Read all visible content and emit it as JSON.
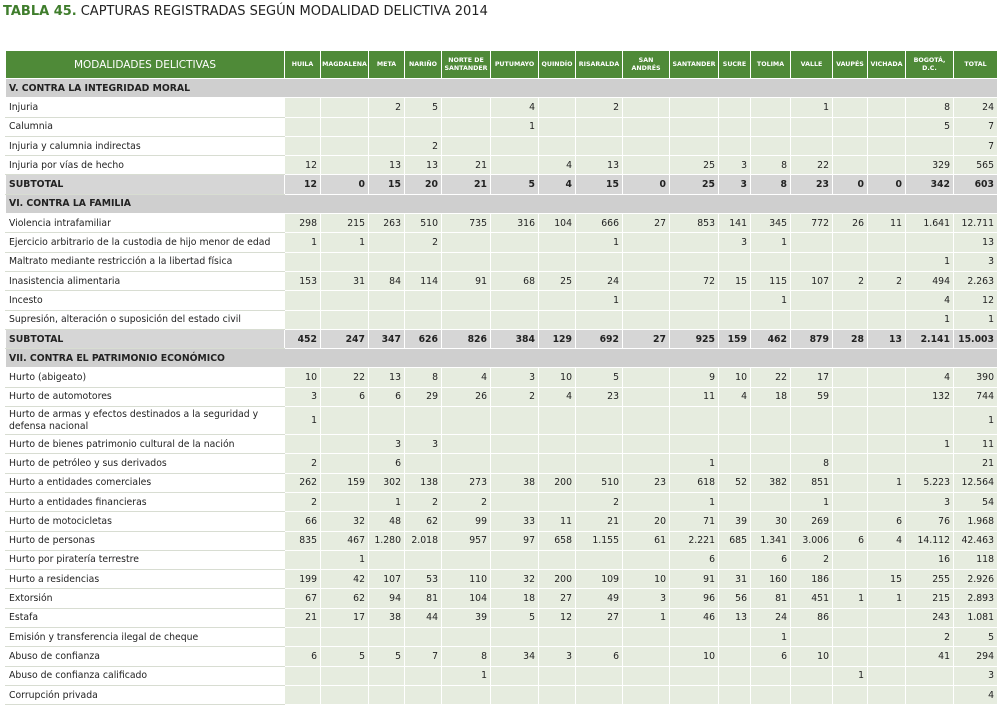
{
  "title": {
    "number": "TABLA 45.",
    "text": "CAPTURAS REGISTRADAS SEGÚN MODALIDAD DELICTIVA 2014"
  },
  "table": {
    "columns": [
      "MODALIDADES DELICTIVAS",
      "HUILA",
      "MAGDALENA",
      "META",
      "NARIÑO",
      "NORTE DE SANTANDER",
      "PUTUMAYO",
      "QUINDÍO",
      "RISARALDA",
      "SAN ANDRÉS",
      "SANTANDER",
      "SUCRE",
      "TOLIMA",
      "VALLE",
      "VAUPÉS",
      "VICHADA",
      "BOGOTÁ, D.C.",
      "TOTAL"
    ],
    "sections": [
      {
        "title": "V. CONTRA LA INTEGRIDAD MORAL",
        "rows": [
          {
            "label": "Injuria",
            "cells": [
              null,
              null,
              "2",
              "5",
              null,
              "4",
              null,
              "2",
              null,
              null,
              null,
              null,
              "1",
              null,
              null,
              "8",
              "24"
            ]
          },
          {
            "label": "Calumnia",
            "cells": [
              null,
              null,
              null,
              null,
              null,
              "1",
              null,
              null,
              null,
              null,
              null,
              null,
              null,
              null,
              null,
              "5",
              "7"
            ]
          },
          {
            "label": "Injuria y calumnia indirectas",
            "cells": [
              null,
              null,
              null,
              "2",
              null,
              null,
              null,
              null,
              null,
              null,
              null,
              null,
              null,
              null,
              null,
              null,
              "7"
            ]
          },
          {
            "label": "Injuria por vías de hecho",
            "cells": [
              "12",
              null,
              "13",
              "13",
              "21",
              null,
              "4",
              "13",
              null,
              "25",
              "3",
              "8",
              "22",
              null,
              null,
              "329",
              "565"
            ]
          }
        ],
        "subtotal": {
          "label": "SUBTOTAL",
          "cells": [
            "12",
            "0",
            "15",
            "20",
            "21",
            "5",
            "4",
            "15",
            "0",
            "25",
            "3",
            "8",
            "23",
            "0",
            "0",
            "342",
            "603"
          ]
        }
      },
      {
        "title": "VI. CONTRA LA FAMILIA",
        "rows": [
          {
            "label": "Violencia intrafamiliar",
            "cells": [
              "298",
              "215",
              "263",
              "510",
              "735",
              "316",
              "104",
              "666",
              "27",
              "853",
              "141",
              "345",
              "772",
              "26",
              "11",
              "1.641",
              "12.711"
            ]
          },
          {
            "label": "Ejercicio arbitrario de la custodia de hijo menor de edad",
            "cells": [
              "1",
              "1",
              null,
              "2",
              null,
              null,
              null,
              "1",
              null,
              null,
              "3",
              "1",
              null,
              null,
              null,
              null,
              "13"
            ]
          },
          {
            "label": "Maltrato mediante restricción a la libertad física",
            "cells": [
              null,
              null,
              null,
              null,
              null,
              null,
              null,
              null,
              null,
              null,
              null,
              null,
              null,
              null,
              null,
              "1",
              "3"
            ]
          },
          {
            "label": "Inasistencia alimentaria",
            "cells": [
              "153",
              "31",
              "84",
              "114",
              "91",
              "68",
              "25",
              "24",
              null,
              "72",
              "15",
              "115",
              "107",
              "2",
              "2",
              "494",
              "2.263"
            ]
          },
          {
            "label": "Incesto",
            "cells": [
              null,
              null,
              null,
              null,
              null,
              null,
              null,
              "1",
              null,
              null,
              null,
              "1",
              null,
              null,
              null,
              "4",
              "12"
            ]
          },
          {
            "label": "Supresión, alteración o suposición del estado civil",
            "cells": [
              null,
              null,
              null,
              null,
              null,
              null,
              null,
              null,
              null,
              null,
              null,
              null,
              null,
              null,
              null,
              "1",
              "1"
            ]
          }
        ],
        "subtotal": {
          "label": "SUBTOTAL",
          "cells": [
            "452",
            "247",
            "347",
            "626",
            "826",
            "384",
            "129",
            "692",
            "27",
            "925",
            "159",
            "462",
            "879",
            "28",
            "13",
            "2.141",
            "15.003"
          ]
        }
      },
      {
        "title": "VII. CONTRA EL PATRIMONIO ECONÓMICO",
        "rows": [
          {
            "label": "Hurto (abigeato)",
            "cells": [
              "10",
              "22",
              "13",
              "8",
              "4",
              "3",
              "10",
              "5",
              null,
              "9",
              "10",
              "22",
              "17",
              null,
              null,
              "4",
              "390"
            ]
          },
          {
            "label": "Hurto de automotores",
            "cells": [
              "3",
              "6",
              "6",
              "29",
              "26",
              "2",
              "4",
              "23",
              null,
              "11",
              "4",
              "18",
              "59",
              null,
              null,
              "132",
              "744"
            ]
          },
          {
            "label": "Hurto de armas y efectos destinados a la seguridad y defensa nacional",
            "cells": [
              "1",
              null,
              null,
              null,
              null,
              null,
              null,
              null,
              null,
              null,
              null,
              null,
              null,
              null,
              null,
              null,
              "1"
            ]
          },
          {
            "label": "Hurto de bienes patrimonio cultural de la nación",
            "cells": [
              null,
              null,
              "3",
              "3",
              null,
              null,
              null,
              null,
              null,
              null,
              null,
              null,
              null,
              null,
              null,
              "1",
              "11"
            ]
          },
          {
            "label": "Hurto de petróleo y sus derivados",
            "cells": [
              "2",
              null,
              "6",
              null,
              null,
              null,
              null,
              null,
              null,
              "1",
              null,
              null,
              "8",
              null,
              null,
              null,
              "21"
            ]
          },
          {
            "label": "Hurto a entidades comerciales",
            "cells": [
              "262",
              "159",
              "302",
              "138",
              "273",
              "38",
              "200",
              "510",
              "23",
              "618",
              "52",
              "382",
              "851",
              null,
              "1",
              "5.223",
              "12.564"
            ]
          },
          {
            "label": "Hurto a entidades financieras",
            "cells": [
              "2",
              null,
              "1",
              "2",
              "2",
              null,
              null,
              "2",
              null,
              "1",
              null,
              null,
              "1",
              null,
              null,
              "3",
              "54"
            ]
          },
          {
            "label": "Hurto de motocicletas",
            "cells": [
              "66",
              "32",
              "48",
              "62",
              "99",
              "33",
              "11",
              "21",
              "20",
              "71",
              "39",
              "30",
              "269",
              null,
              "6",
              "76",
              "1.968"
            ]
          },
          {
            "label": "Hurto de personas",
            "cells": [
              "835",
              "467",
              "1.280",
              "2.018",
              "957",
              "97",
              "658",
              "1.155",
              "61",
              "2.221",
              "685",
              "1.341",
              "3.006",
              "6",
              "4",
              "14.112",
              "42.463"
            ]
          },
          {
            "label": "Hurto por piratería terrestre",
            "cells": [
              null,
              "1",
              null,
              null,
              null,
              null,
              null,
              null,
              null,
              "6",
              null,
              "6",
              "2",
              null,
              null,
              "16",
              "118"
            ]
          },
          {
            "label": "Hurto a residencias",
            "cells": [
              "199",
              "42",
              "107",
              "53",
              "110",
              "32",
              "200",
              "109",
              "10",
              "91",
              "31",
              "160",
              "186",
              null,
              "15",
              "255",
              "2.926"
            ]
          },
          {
            "label": "Extorsión",
            "cells": [
              "67",
              "62",
              "94",
              "81",
              "104",
              "18",
              "27",
              "49",
              "3",
              "96",
              "56",
              "81",
              "451",
              "1",
              "1",
              "215",
              "2.893"
            ]
          },
          {
            "label": "Estafa",
            "cells": [
              "21",
              "17",
              "38",
              "44",
              "39",
              "5",
              "12",
              "27",
              "1",
              "46",
              "13",
              "24",
              "86",
              null,
              null,
              "243",
              "1.081"
            ]
          },
          {
            "label": "Emisión y transferencia ilegal de cheque",
            "cells": [
              null,
              null,
              null,
              null,
              null,
              null,
              null,
              null,
              null,
              null,
              null,
              "1",
              null,
              null,
              null,
              "2",
              "5"
            ]
          },
          {
            "label": "Abuso de confianza",
            "cells": [
              "6",
              "5",
              "5",
              "7",
              "8",
              "34",
              "3",
              "6",
              null,
              "10",
              null,
              "6",
              "10",
              null,
              null,
              "41",
              "294"
            ]
          },
          {
            "label": "Abuso de confianza calificado",
            "cells": [
              null,
              null,
              null,
              null,
              "1",
              null,
              null,
              null,
              null,
              null,
              null,
              null,
              null,
              "1",
              null,
              null,
              "3"
            ]
          },
          {
            "label": "Corrupción privada",
            "cells": [
              null,
              null,
              null,
              null,
              null,
              null,
              null,
              null,
              null,
              null,
              null,
              null,
              null,
              null,
              null,
              null,
              "4"
            ]
          }
        ]
      }
    ]
  }
}
